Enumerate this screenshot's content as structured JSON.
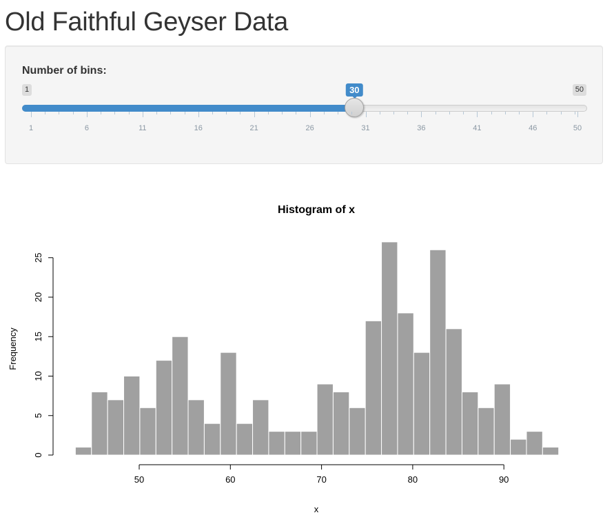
{
  "page": {
    "title": "Old Faithful Geyser Data"
  },
  "sidebar": {
    "slider": {
      "label": "Number of bins:",
      "min": 1,
      "max": 50,
      "value": 30,
      "min_label": "1",
      "max_label": "50",
      "value_label": "30",
      "tick_labels": [
        "1",
        "6",
        "11",
        "16",
        "21",
        "26",
        "31",
        "36",
        "41",
        "46",
        "50"
      ],
      "accent_color": "#428bca"
    }
  },
  "chart_data": {
    "type": "bar",
    "title": "Histogram of x",
    "xlabel": "x",
    "ylabel": "Frequency",
    "bar_color": "#a0a0a0",
    "bin_start": 43,
    "bin_width": 1.767,
    "values": [
      1,
      8,
      7,
      10,
      6,
      12,
      15,
      7,
      4,
      13,
      4,
      7,
      3,
      3,
      3,
      9,
      8,
      6,
      17,
      27,
      18,
      13,
      26,
      16,
      8,
      6,
      9,
      2,
      3,
      1
    ],
    "x_ticks": [
      50,
      60,
      70,
      80,
      90
    ],
    "y_ticks": [
      0,
      5,
      10,
      15,
      20,
      25
    ],
    "grid": false
  }
}
